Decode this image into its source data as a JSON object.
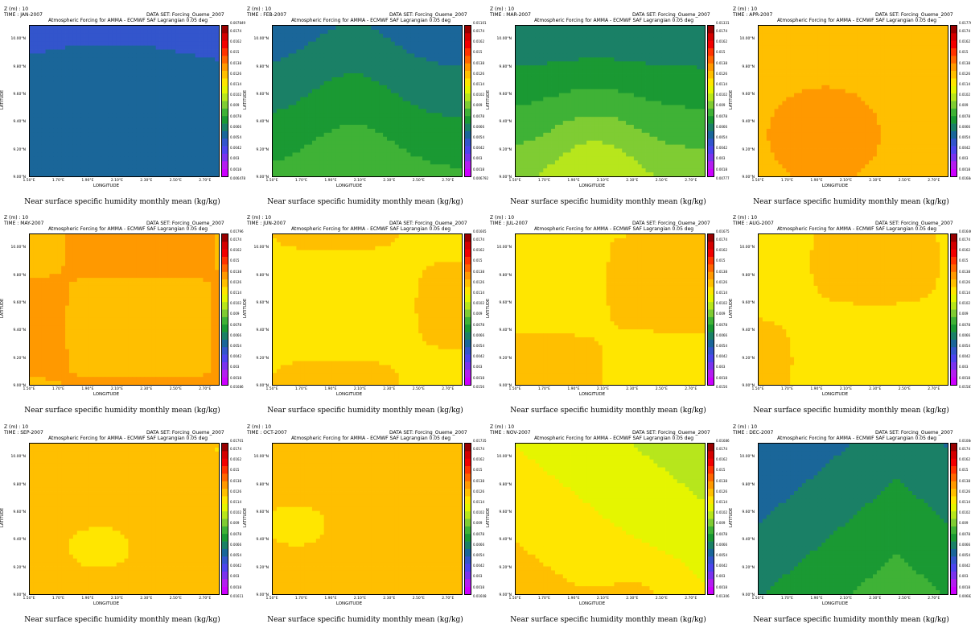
{
  "header": {
    "z_label": "Z (m) : 10",
    "dataset_label": "DATA SET: Forcing_Oueme_2007",
    "subtitle": "Atmospheric Forcing for AMMA - ECMWF SAF Lagrangian 0.05 deg",
    "caption": "Near surface specific humidity monthly mean (kg/kg)",
    "xaxis_title": "LONGITUDE",
    "yaxis_title": "LATITUDE"
  },
  "axes": {
    "x_ticks": [
      "1.50°E",
      "1.70°E",
      "1.90°E",
      "2.10°E",
      "2.30°E",
      "2.50°E",
      "2.70°E"
    ],
    "y_ticks": [
      "9.00°N",
      "9.20°N",
      "9.40°N",
      "9.60°N",
      "9.80°N",
      "10.00°N"
    ]
  },
  "colorbar": {
    "levels": [
      "0.0174",
      "0.0162",
      "0.015",
      "0.0138",
      "0.0126",
      "0.0114",
      "0.0102",
      "0.009",
      "0.0078",
      "0.0066",
      "0.0054",
      "0.0042",
      "0.003",
      "0.0018"
    ],
    "colors": [
      "#990000",
      "#d40000",
      "#f20000",
      "#ff3300",
      "#ff6600",
      "#ff9900",
      "#ffbf00",
      "#ffe600",
      "#e5f500",
      "#b7e61c",
      "#7fcc33",
      "#3fb236",
      "#1a9933",
      "#1a8066",
      "#1a6699",
      "#3355cc",
      "#4d44ee",
      "#7a33ee",
      "#b41ef0",
      "#cc00ff"
    ]
  },
  "months": [
    {
      "time": "TIME : JAN-2007",
      "cb_max": "0.007849",
      "cb_min": "0.006478"
    },
    {
      "time": "TIME : FEB-2007",
      "cb_max": "0.01101",
      "cb_min": "0.006792"
    },
    {
      "time": "TIME : MAR-2007",
      "cb_max": "0.01331",
      "cb_min": "0.00777"
    },
    {
      "time": "TIME : APR-2007",
      "cb_max": "0.01776",
      "cb_min": "0.01684"
    },
    {
      "time": "TIME : MAY-2007",
      "cb_max": "0.01796",
      "cb_min": "0.01686"
    },
    {
      "time": "TIME : JUN-2007",
      "cb_max": "0.01665",
      "cb_min": "0.0156"
    },
    {
      "time": "TIME : JUL-2007",
      "cb_max": "0.01675",
      "cb_min": "0.0156"
    },
    {
      "time": "TIME : AUG-2007",
      "cb_max": "0.01646",
      "cb_min": "0.01581"
    },
    {
      "time": "TIME : SEP-2007",
      "cb_max": "0.01701",
      "cb_min": "0.01611"
    },
    {
      "time": "TIME : OCT-2007",
      "cb_max": "0.01735",
      "cb_min": "0.01608"
    },
    {
      "time": "TIME : NOV-2007",
      "cb_max": "0.01686",
      "cb_min": "0.01306"
    },
    {
      "time": "TIME : DEC-2007",
      "cb_max": "0.01084",
      "cb_min": "0.006827"
    }
  ],
  "chart_data": {
    "type": "heatmap",
    "panel_count": 12,
    "x_range": [
      1.5,
      2.8
    ],
    "y_range": [
      9.0,
      10.1
    ],
    "z_units": "kg/kg",
    "panels": [
      {
        "month": "JAN-2007",
        "min": 0.006478,
        "max": 0.007849
      },
      {
        "month": "FEB-2007",
        "min": 0.006792,
        "max": 0.01101
      },
      {
        "month": "MAR-2007",
        "min": 0.00777,
        "max": 0.01331
      },
      {
        "month": "APR-2007",
        "min": 0.01684,
        "max": 0.01776
      },
      {
        "month": "MAY-2007",
        "min": 0.01686,
        "max": 0.01796
      },
      {
        "month": "JUN-2007",
        "min": 0.0156,
        "max": 0.01665
      },
      {
        "month": "JUL-2007",
        "min": 0.0156,
        "max": 0.01675
      },
      {
        "month": "AUG-2007",
        "min": 0.01581,
        "max": 0.01646
      },
      {
        "month": "SEP-2007",
        "min": 0.01611,
        "max": 0.01701
      },
      {
        "month": "OCT-2007",
        "min": 0.01608,
        "max": 0.01735
      },
      {
        "month": "NOV-2007",
        "min": 0.01306,
        "max": 0.01686
      },
      {
        "month": "DEC-2007",
        "min": 0.006827,
        "max": 0.01084
      }
    ]
  }
}
